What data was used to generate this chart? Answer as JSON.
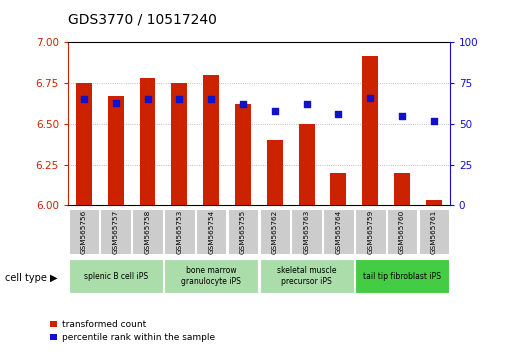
{
  "title": "GDS3770 / 10517240",
  "samples": [
    "GSM565756",
    "GSM565757",
    "GSM565758",
    "GSM565753",
    "GSM565754",
    "GSM565755",
    "GSM565762",
    "GSM565763",
    "GSM565764",
    "GSM565759",
    "GSM565760",
    "GSM565761"
  ],
  "bar_values": [
    6.75,
    6.67,
    6.78,
    6.75,
    6.8,
    6.62,
    6.4,
    6.5,
    6.2,
    6.92,
    6.2,
    6.03
  ],
  "dot_values": [
    65,
    63,
    65,
    65,
    65,
    62,
    58,
    62,
    56,
    66,
    55,
    52
  ],
  "ylim_left": [
    6.0,
    7.0
  ],
  "ylim_right": [
    0,
    100
  ],
  "yticks_left": [
    6.0,
    6.25,
    6.5,
    6.75,
    7.0
  ],
  "yticks_right": [
    0,
    25,
    50,
    75,
    100
  ],
  "cell_type_groups": [
    {
      "label": "splenic B cell iPS",
      "start": 0,
      "end": 3,
      "color": "#aaddaa"
    },
    {
      "label": "bone marrow\ngranulocyte iPS",
      "start": 3,
      "end": 6,
      "color": "#aaddaa"
    },
    {
      "label": "skeletal muscle\nprecursor iPS",
      "start": 6,
      "end": 9,
      "color": "#aaddaa"
    },
    {
      "label": "tail tip fibroblast iPS",
      "start": 9,
      "end": 12,
      "color": "#44cc44"
    }
  ],
  "bar_color": "#cc2200",
  "dot_color": "#1111cc",
  "bar_bottom": 6.0,
  "grid_color": "#aaaaaa",
  "sample_bg_color": "#cccccc",
  "legend_labels": [
    "transformed count",
    "percentile rank within the sample"
  ]
}
